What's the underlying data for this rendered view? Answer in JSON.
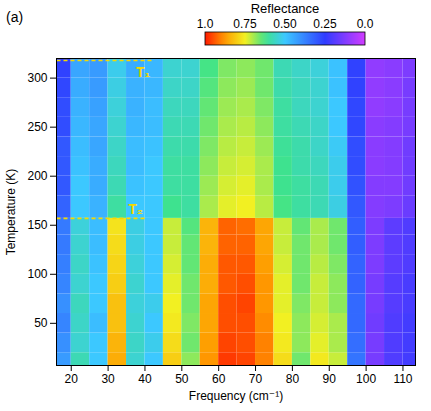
{
  "chart_data": {
    "type": "heatmap",
    "panel_label": "(a)",
    "xlabel": "Frequency (cm⁻¹)",
    "ylabel": "Temperature (K)",
    "xlim": [
      16,
      113.4
    ],
    "ylim": [
      7,
      320
    ],
    "xticks": [
      20,
      30,
      40,
      50,
      60,
      70,
      80,
      90,
      100,
      110
    ],
    "yticks": [
      50,
      100,
      150,
      200,
      250,
      300
    ],
    "legend": "top",
    "x_edges": [
      16,
      20,
      25,
      30,
      35,
      40,
      45,
      50,
      55,
      60,
      65,
      70,
      75,
      80,
      85,
      90,
      95,
      100,
      105,
      110,
      113.4
    ],
    "y_edges": [
      7,
      20,
      40,
      60,
      80,
      100,
      120,
      140,
      157,
      180,
      200,
      220,
      240,
      260,
      280,
      300,
      320
    ],
    "cells": [
      [
        0.42,
        0.58,
        0.5,
        0.85,
        0.55,
        0.5,
        0.8,
        0.68,
        0.88,
        0.97,
        0.96,
        0.9,
        0.78,
        0.66,
        0.76,
        0.72,
        0.35,
        0.14,
        0.2,
        0.22
      ],
      [
        0.4,
        0.55,
        0.5,
        0.84,
        0.56,
        0.52,
        0.78,
        0.66,
        0.87,
        0.96,
        0.95,
        0.9,
        0.76,
        0.68,
        0.74,
        0.7,
        0.34,
        0.14,
        0.2,
        0.22
      ],
      [
        0.38,
        0.56,
        0.48,
        0.82,
        0.55,
        0.5,
        0.76,
        0.67,
        0.86,
        0.95,
        0.95,
        0.89,
        0.75,
        0.68,
        0.73,
        0.7,
        0.33,
        0.15,
        0.2,
        0.22
      ],
      [
        0.4,
        0.57,
        0.5,
        0.82,
        0.54,
        0.52,
        0.75,
        0.66,
        0.86,
        0.95,
        0.96,
        0.88,
        0.74,
        0.67,
        0.72,
        0.68,
        0.33,
        0.14,
        0.19,
        0.21
      ],
      [
        0.38,
        0.55,
        0.5,
        0.8,
        0.55,
        0.5,
        0.74,
        0.66,
        0.85,
        0.94,
        0.95,
        0.88,
        0.74,
        0.66,
        0.72,
        0.68,
        0.32,
        0.14,
        0.19,
        0.21
      ],
      [
        0.37,
        0.56,
        0.49,
        0.79,
        0.54,
        0.5,
        0.73,
        0.65,
        0.85,
        0.94,
        0.94,
        0.87,
        0.73,
        0.66,
        0.71,
        0.67,
        0.32,
        0.13,
        0.18,
        0.2
      ],
      [
        0.36,
        0.55,
        0.48,
        0.78,
        0.53,
        0.5,
        0.72,
        0.65,
        0.84,
        0.93,
        0.93,
        0.86,
        0.72,
        0.66,
        0.7,
        0.66,
        0.31,
        0.13,
        0.18,
        0.2
      ],
      [
        0.36,
        0.54,
        0.48,
        0.77,
        0.53,
        0.5,
        0.72,
        0.64,
        0.84,
        0.93,
        0.92,
        0.86,
        0.72,
        0.65,
        0.7,
        0.66,
        0.31,
        0.13,
        0.18,
        0.2
      ],
      [
        0.32,
        0.5,
        0.46,
        0.6,
        0.5,
        0.5,
        0.62,
        0.6,
        0.7,
        0.74,
        0.75,
        0.71,
        0.63,
        0.6,
        0.58,
        0.53,
        0.3,
        0.12,
        0.13,
        0.16
      ],
      [
        0.3,
        0.5,
        0.45,
        0.58,
        0.49,
        0.5,
        0.6,
        0.6,
        0.69,
        0.73,
        0.74,
        0.7,
        0.62,
        0.6,
        0.58,
        0.52,
        0.29,
        0.12,
        0.12,
        0.15
      ],
      [
        0.3,
        0.49,
        0.45,
        0.57,
        0.48,
        0.5,
        0.6,
        0.6,
        0.68,
        0.72,
        0.73,
        0.7,
        0.62,
        0.59,
        0.57,
        0.52,
        0.28,
        0.11,
        0.12,
        0.15
      ],
      [
        0.3,
        0.48,
        0.44,
        0.56,
        0.48,
        0.49,
        0.59,
        0.59,
        0.67,
        0.71,
        0.72,
        0.69,
        0.61,
        0.59,
        0.56,
        0.51,
        0.28,
        0.11,
        0.12,
        0.15
      ],
      [
        0.28,
        0.47,
        0.44,
        0.55,
        0.47,
        0.48,
        0.58,
        0.58,
        0.66,
        0.7,
        0.71,
        0.68,
        0.6,
        0.58,
        0.56,
        0.5,
        0.27,
        0.11,
        0.12,
        0.14
      ],
      [
        0.28,
        0.46,
        0.43,
        0.54,
        0.46,
        0.48,
        0.57,
        0.57,
        0.65,
        0.69,
        0.7,
        0.67,
        0.6,
        0.57,
        0.55,
        0.5,
        0.27,
        0.1,
        0.11,
        0.14
      ],
      [
        0.27,
        0.45,
        0.42,
        0.53,
        0.46,
        0.47,
        0.56,
        0.56,
        0.64,
        0.68,
        0.69,
        0.66,
        0.59,
        0.57,
        0.55,
        0.49,
        0.26,
        0.1,
        0.11,
        0.14
      ],
      [
        0.26,
        0.44,
        0.42,
        0.52,
        0.45,
        0.47,
        0.55,
        0.55,
        0.63,
        0.67,
        0.68,
        0.66,
        0.58,
        0.56,
        0.54,
        0.49,
        0.26,
        0.1,
        0.11,
        0.13
      ]
    ],
    "colorbar": {
      "label": "Reflectance",
      "range": [
        1,
        0
      ],
      "ticks": [
        {
          "value": 1,
          "label": "1.0"
        },
        0.75,
        {
          "value": 0.5,
          "label": "0.50"
        },
        0.25,
        {
          "value": 0,
          "label": "0.0"
        }
      ]
    },
    "annotations": [
      {
        "text": "T₁",
        "y": 318,
        "x": [
          16,
          42
        ]
      },
      {
        "text": "T₂",
        "y": 157,
        "x": [
          16,
          40
        ]
      }
    ]
  }
}
